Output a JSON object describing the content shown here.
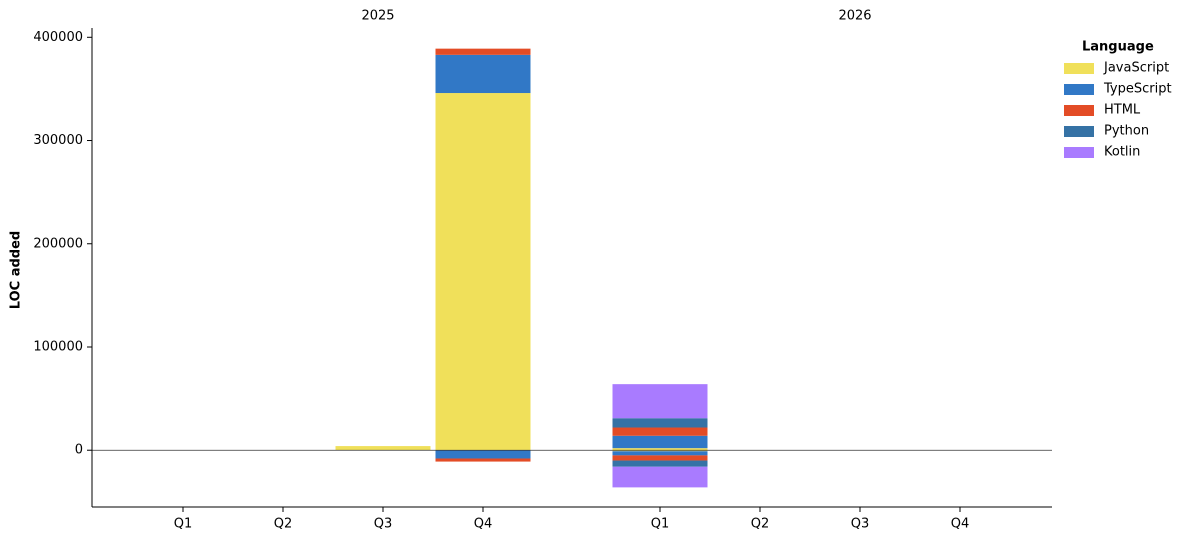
{
  "chart_data": {
    "type": "stacked_bar",
    "y_label": "LOC added",
    "groups": [
      "2025",
      "2026"
    ],
    "categories": [
      "Q1",
      "Q2",
      "Q3",
      "Q4",
      "Q1",
      "Q2",
      "Q3",
      "Q4"
    ],
    "legend_title": "Language",
    "legend": "upper right outside",
    "series": [
      {
        "name": "JavaScript",
        "color": "#f0e05a",
        "values": [
          0,
          0,
          4000,
          346000,
          2000,
          0,
          0,
          0
        ],
        "negative_values": [
          0,
          0,
          0,
          0,
          -1000,
          0,
          0,
          0
        ]
      },
      {
        "name": "TypeScript",
        "color": "#3178c6",
        "values": [
          0,
          0,
          0,
          37000,
          12000,
          0,
          0,
          0
        ],
        "negative_values": [
          0,
          0,
          0,
          -8000,
          -4000,
          0,
          0,
          0
        ]
      },
      {
        "name": "HTML",
        "color": "#e34c26",
        "values": [
          0,
          0,
          0,
          6000,
          8000,
          0,
          0,
          0
        ],
        "negative_values": [
          0,
          0,
          0,
          -3000,
          -5000,
          0,
          0,
          0
        ]
      },
      {
        "name": "Python",
        "color": "#3572a5",
        "values": [
          0,
          0,
          0,
          0,
          9000,
          0,
          0,
          0
        ],
        "negative_values": [
          0,
          0,
          0,
          0,
          -6000,
          0,
          0,
          0
        ]
      },
      {
        "name": "Kotlin",
        "color": "#a97bff",
        "values": [
          0,
          0,
          0,
          0,
          33000,
          0,
          0,
          0
        ],
        "negative_values": [
          0,
          0,
          0,
          0,
          -20000,
          0,
          0,
          0
        ]
      }
    ],
    "ylim": [
      -55000,
      409000
    ],
    "yticks": [
      0,
      100000,
      200000,
      300000,
      400000
    ]
  }
}
